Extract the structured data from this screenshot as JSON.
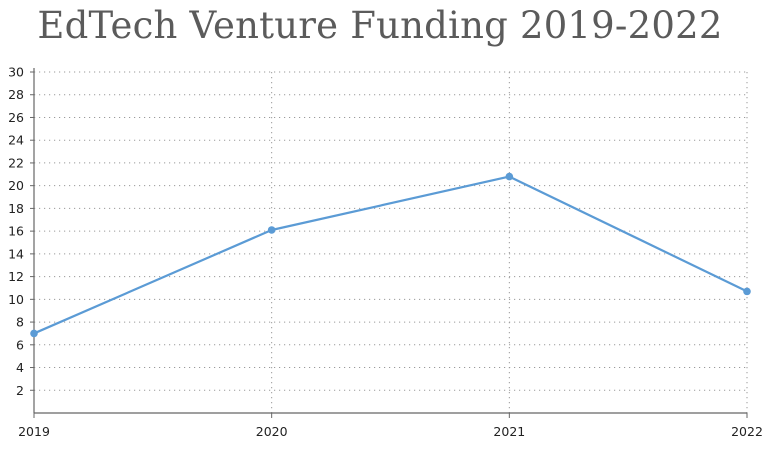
{
  "chart_data": {
    "type": "line",
    "title": "EdTech Venture Funding 2019-2022",
    "xlabel": "",
    "ylabel": "",
    "categories": [
      "2019",
      "2020",
      "2021",
      "2022"
    ],
    "series": [
      {
        "values": [
          7.0,
          16.1,
          20.8,
          10.7
        ],
        "color": "#5b9bd5"
      }
    ],
    "ylim": [
      0,
      30
    ],
    "yticks": [
      2,
      4,
      6,
      8,
      10,
      12,
      14,
      16,
      18,
      20,
      22,
      24,
      26,
      28,
      30
    ],
    "grid": true,
    "legend": "none",
    "colors": {
      "title": "#5b5b5b",
      "line": "#5b9bd5",
      "grid": "#9a9a9a",
      "axis": "#666666"
    }
  }
}
